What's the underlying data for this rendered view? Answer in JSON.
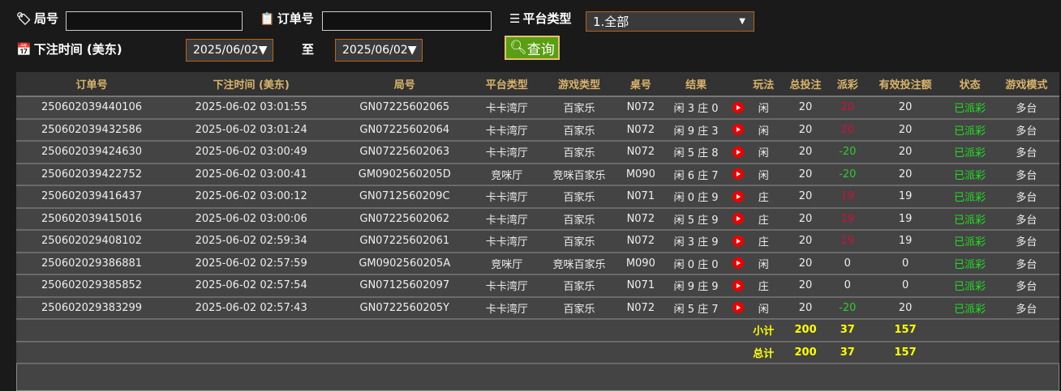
{
  "filters": {
    "round_label": "局号",
    "order_label": "订单号",
    "platform_label": "平台类型",
    "platform_value": "1.全部",
    "time_label": "下注时间 (美东)",
    "date_from": "2025/06/02▼",
    "to_label": "至",
    "date_to": "2025/06/02▼",
    "query_button": "查询"
  },
  "colors": {
    "red": "#d0103a",
    "green": "#2ecc2e",
    "status": "#22dd22",
    "accent": "#d9b46a"
  },
  "columns": [
    "订单号",
    "下注时间 (美东)",
    "局号",
    "平台类型",
    "游戏类型",
    "桌号",
    "结果",
    "",
    "玩法",
    "总投注",
    "派彩",
    "有效投注额",
    "状态",
    "游戏模式"
  ],
  "rows": [
    [
      "250602039440106",
      "2025-06-02 03:01:55",
      "GN07225602065",
      "卡卡湾厅",
      "百家乐",
      "N072",
      "闲 3 庄 0",
      "闲",
      "20",
      "20",
      "20",
      "已派彩",
      "多台",
      "red"
    ],
    [
      "250602039432586",
      "2025-06-02 03:01:24",
      "GN07225602064",
      "卡卡湾厅",
      "百家乐",
      "N072",
      "闲 9 庄 3",
      "闲",
      "20",
      "20",
      "20",
      "已派彩",
      "多台",
      "red"
    ],
    [
      "250602039424630",
      "2025-06-02 03:00:49",
      "GN07225602063",
      "卡卡湾厅",
      "百家乐",
      "N072",
      "闲 5 庄 8",
      "闲",
      "20",
      "-20",
      "20",
      "已派彩",
      "多台",
      "green"
    ],
    [
      "250602039422752",
      "2025-06-02 03:00:41",
      "GM0902560205D",
      "竞咪厅",
      "竞咪百家乐",
      "M090",
      "闲 6 庄 7",
      "闲",
      "20",
      "-20",
      "20",
      "已派彩",
      "多台",
      "green"
    ],
    [
      "250602039416437",
      "2025-06-02 03:00:12",
      "GN0712560209C",
      "卡卡湾厅",
      "百家乐",
      "N071",
      "闲 0 庄 9",
      "庄",
      "20",
      "19",
      "19",
      "已派彩",
      "多台",
      "red"
    ],
    [
      "250602039415016",
      "2025-06-02 03:00:06",
      "GN07225602062",
      "卡卡湾厅",
      "百家乐",
      "N072",
      "闲 5 庄 9",
      "庄",
      "20",
      "19",
      "19",
      "已派彩",
      "多台",
      "red"
    ],
    [
      "250602029408102",
      "2025-06-02 02:59:34",
      "GN07225602061",
      "卡卡湾厅",
      "百家乐",
      "N072",
      "闲 3 庄 9",
      "庄",
      "20",
      "19",
      "19",
      "已派彩",
      "多台",
      "red"
    ],
    [
      "250602029386881",
      "2025-06-02 02:57:59",
      "GM0902560205A",
      "竞咪厅",
      "竞咪百家乐",
      "M090",
      "闲 0 庄 0",
      "闲",
      "20",
      "0",
      "0",
      "已派彩",
      "多台",
      "white"
    ],
    [
      "250602029385852",
      "2025-06-02 02:57:54",
      "GN07125602097",
      "卡卡湾厅",
      "百家乐",
      "N071",
      "闲 9 庄 9",
      "庄",
      "20",
      "0",
      "0",
      "已派彩",
      "多台",
      "white"
    ],
    [
      "250602029383299",
      "2025-06-02 02:57:43",
      "GN0722560205Y",
      "卡卡湾厅",
      "百家乐",
      "N072",
      "闲 5 庄 7",
      "闲",
      "20",
      "-20",
      "20",
      "已派彩",
      "多台",
      "green"
    ]
  ],
  "subtotal": {
    "label": "小计",
    "total": "200",
    "payout": "37",
    "valid": "157"
  },
  "grand_total": {
    "label": "总计",
    "total": "200",
    "payout": "37",
    "valid": "157"
  }
}
